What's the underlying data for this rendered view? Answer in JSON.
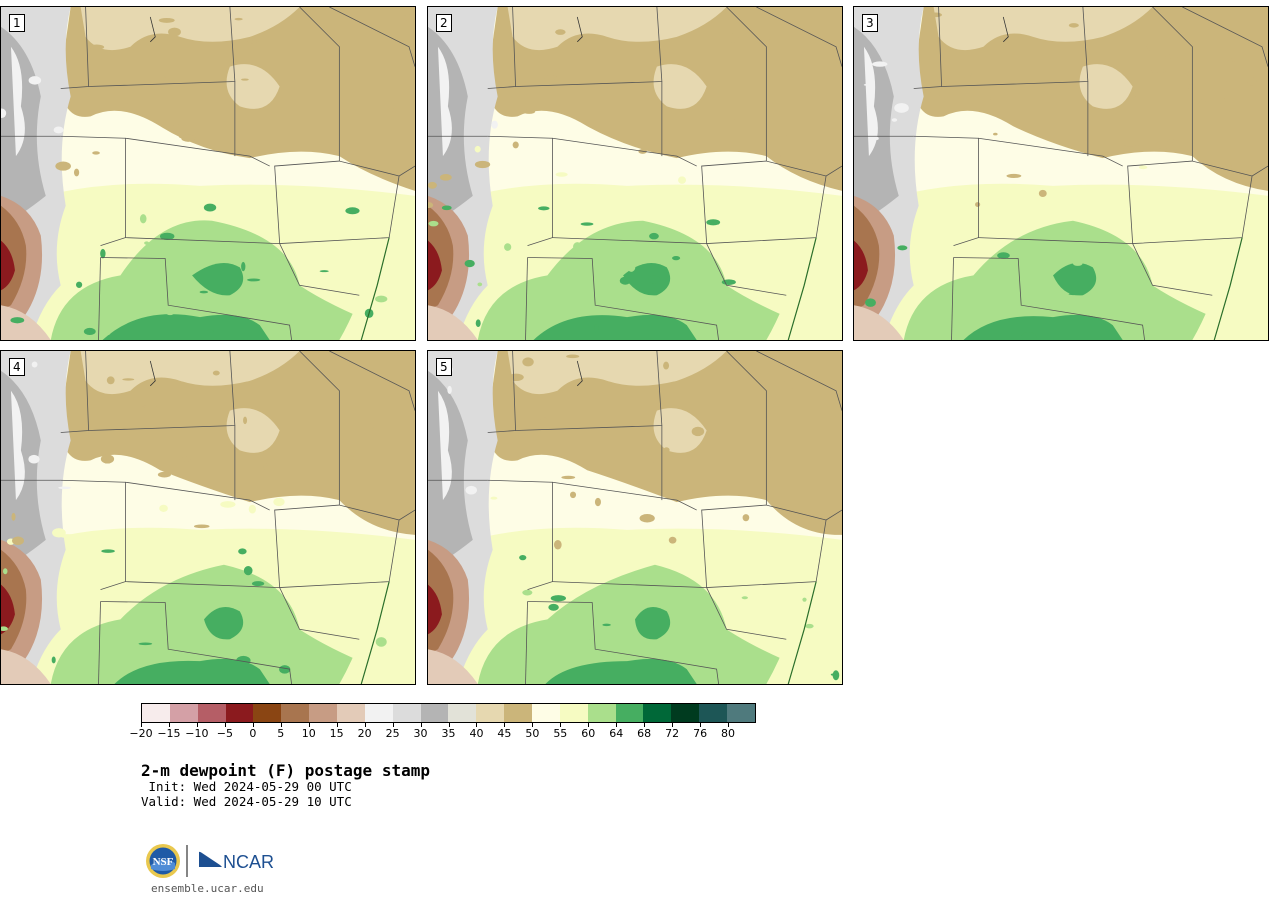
{
  "panels": [
    {
      "label": "1",
      "variant": 0
    },
    {
      "label": "2",
      "variant": 1
    },
    {
      "label": "3",
      "variant": 2
    },
    {
      "label": "4",
      "variant": 3
    },
    {
      "label": "5",
      "variant": 4
    }
  ],
  "colorbar": {
    "colors": [
      "#f7ecec",
      "#d4a0a6",
      "#b55e66",
      "#8b1a1e",
      "#8a4513",
      "#a8754f",
      "#c79c84",
      "#e3cbb8",
      "#f2f2f2",
      "#dcdcdc",
      "#b4b4b4",
      "#e2e2d8",
      "#e6d8b0",
      "#cbb57a",
      "#fefde6",
      "#f6fbc2",
      "#aadf8c",
      "#46ae61",
      "#006838",
      "#003b1f",
      "#1d5656",
      "#4f7a7d"
    ],
    "ticks": [
      "-20",
      "-15",
      "-10",
      "-5",
      "0",
      "5",
      "10",
      "15",
      "20",
      "25",
      "30",
      "35",
      "40",
      "45",
      "50",
      "55",
      "60",
      "64",
      "68",
      "72",
      "76",
      "80"
    ]
  },
  "title": "2-m dewpoint (F) postage stamp",
  "init": " Init: Wed 2024-05-29 00 UTC",
  "valid": "Valid: Wed 2024-05-29 10 UTC",
  "logo": {
    "nsf": "NSF",
    "ncar": "NCAR"
  },
  "url": "ensemble.ucar.edu"
}
